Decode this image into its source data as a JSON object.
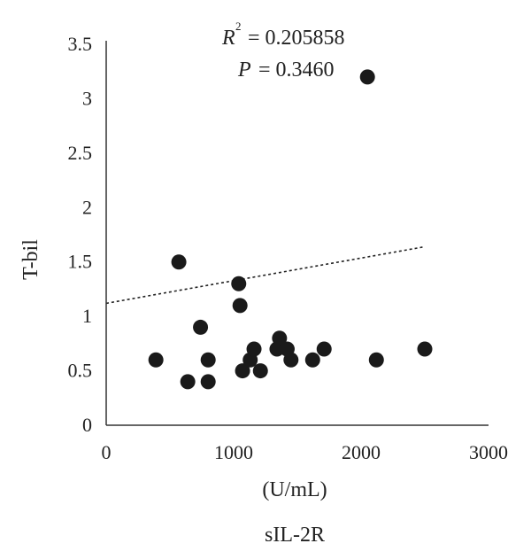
{
  "chart_data": {
    "type": "scatter",
    "xlabel": "(U/mL)",
    "caption": "sIL-2R",
    "ylabel": "T-bil",
    "xlim": [
      0,
      3000
    ],
    "ylim": [
      0,
      3.5
    ],
    "xticks": [
      "0",
      "1000",
      "2000",
      "3000"
    ],
    "yticks": [
      "0",
      "0.5",
      "1",
      "1.5",
      "2",
      "2.5",
      "3",
      "3.5"
    ],
    "annotations": {
      "r_symbol": "R",
      "r_superscript": "2",
      "r_value": "= 0.205858",
      "p_symbol": "P",
      "p_value": "= 0.3460"
    },
    "trendline": {
      "style": "dotted",
      "x": [
        0,
        2500
      ],
      "y": [
        1.12,
        1.64
      ]
    },
    "points": [
      {
        "x": 390,
        "y": 0.6
      },
      {
        "x": 570,
        "y": 1.5
      },
      {
        "x": 640,
        "y": 0.4
      },
      {
        "x": 740,
        "y": 0.9
      },
      {
        "x": 800,
        "y": 0.6
      },
      {
        "x": 800,
        "y": 0.4
      },
      {
        "x": 1040,
        "y": 1.3
      },
      {
        "x": 1050,
        "y": 1.1
      },
      {
        "x": 1070,
        "y": 0.5
      },
      {
        "x": 1130,
        "y": 0.6
      },
      {
        "x": 1160,
        "y": 0.7
      },
      {
        "x": 1210,
        "y": 0.5
      },
      {
        "x": 1340,
        "y": 0.7
      },
      {
        "x": 1360,
        "y": 0.8
      },
      {
        "x": 1420,
        "y": 0.7
      },
      {
        "x": 1450,
        "y": 0.6
      },
      {
        "x": 1620,
        "y": 0.6
      },
      {
        "x": 1710,
        "y": 0.7
      },
      {
        "x": 2050,
        "y": 3.2
      },
      {
        "x": 2120,
        "y": 0.6
      },
      {
        "x": 2500,
        "y": 0.7
      }
    ]
  }
}
